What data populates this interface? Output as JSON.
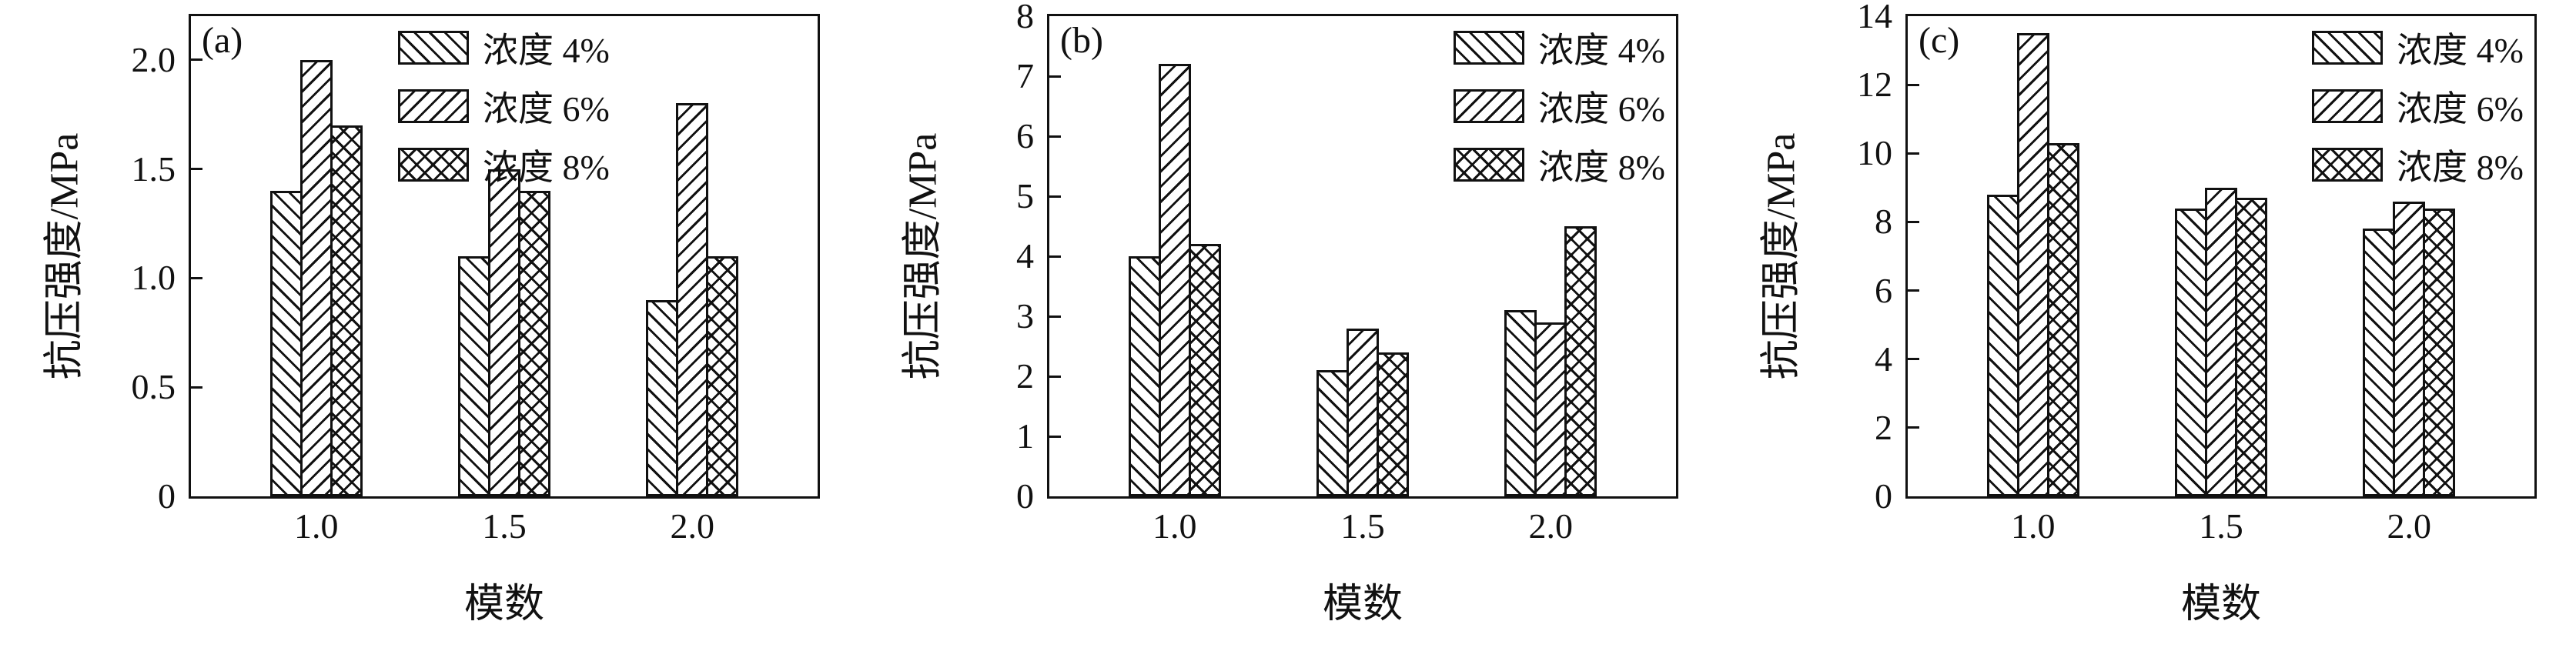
{
  "figure_title": "",
  "legend_labels": [
    "浓度 4%",
    "浓度 6%",
    "浓度 8%"
  ],
  "colors": {
    "axis": "#111111",
    "bar_fill": "#ffffff",
    "hatch": "#111111",
    "background": "#ffffff"
  },
  "chart_data": [
    {
      "type": "bar",
      "panel_label": "(a)",
      "title": "",
      "xlabel": "模数",
      "ylabel": "抗压强度/MPa",
      "categories": [
        "1.0",
        "1.5",
        "2.0"
      ],
      "yticks": [
        0,
        0.5,
        1.0,
        1.5,
        2.0
      ],
      "ytick_labels": [
        "0",
        "0.5",
        "1.0",
        "1.5",
        "2.0"
      ],
      "ylim": [
        0,
        2.2
      ],
      "grid": false,
      "legend_position": "top-center",
      "series": [
        {
          "name": "浓度 4%",
          "hatch": "diagonal-down",
          "values": [
            1.4,
            1.1,
            0.9
          ]
        },
        {
          "name": "浓度 6%",
          "hatch": "diagonal-up",
          "values": [
            2.0,
            1.5,
            1.8
          ]
        },
        {
          "name": "浓度 8%",
          "hatch": "cross",
          "values": [
            1.7,
            1.4,
            1.1
          ]
        }
      ]
    },
    {
      "type": "bar",
      "panel_label": "(b)",
      "title": "",
      "xlabel": "模数",
      "ylabel": "抗压强度/MPa",
      "categories": [
        "1.0",
        "1.5",
        "2.0"
      ],
      "yticks": [
        0,
        1,
        2,
        3,
        4,
        5,
        6,
        7,
        8
      ],
      "ytick_labels": [
        "0",
        "1",
        "2",
        "3",
        "4",
        "5",
        "6",
        "7",
        "8"
      ],
      "ylim": [
        0,
        8
      ],
      "grid": false,
      "legend_position": "top-right",
      "series": [
        {
          "name": "浓度 4%",
          "hatch": "diagonal-down",
          "values": [
            4.0,
            2.1,
            3.1
          ]
        },
        {
          "name": "浓度 6%",
          "hatch": "diagonal-up",
          "values": [
            7.2,
            2.8,
            2.9
          ]
        },
        {
          "name": "浓度 8%",
          "hatch": "cross",
          "values": [
            4.2,
            2.4,
            4.5
          ]
        }
      ]
    },
    {
      "type": "bar",
      "panel_label": "(c)",
      "title": "",
      "xlabel": "模数",
      "ylabel": "抗压强度/MPa",
      "categories": [
        "1.0",
        "1.5",
        "2.0"
      ],
      "yticks": [
        0,
        2,
        4,
        6,
        8,
        10,
        12,
        14
      ],
      "ytick_labels": [
        "0",
        "2",
        "4",
        "6",
        "8",
        "10",
        "12",
        "14"
      ],
      "ylim": [
        0,
        14
      ],
      "grid": false,
      "legend_position": "top-right",
      "series": [
        {
          "name": "浓度 4%",
          "hatch": "diagonal-down",
          "values": [
            8.8,
            8.4,
            7.8
          ]
        },
        {
          "name": "浓度 6%",
          "hatch": "diagonal-up",
          "values": [
            13.5,
            9.0,
            8.6
          ]
        },
        {
          "name": "浓度 8%",
          "hatch": "cross",
          "values": [
            10.3,
            8.7,
            8.4
          ]
        }
      ]
    }
  ]
}
